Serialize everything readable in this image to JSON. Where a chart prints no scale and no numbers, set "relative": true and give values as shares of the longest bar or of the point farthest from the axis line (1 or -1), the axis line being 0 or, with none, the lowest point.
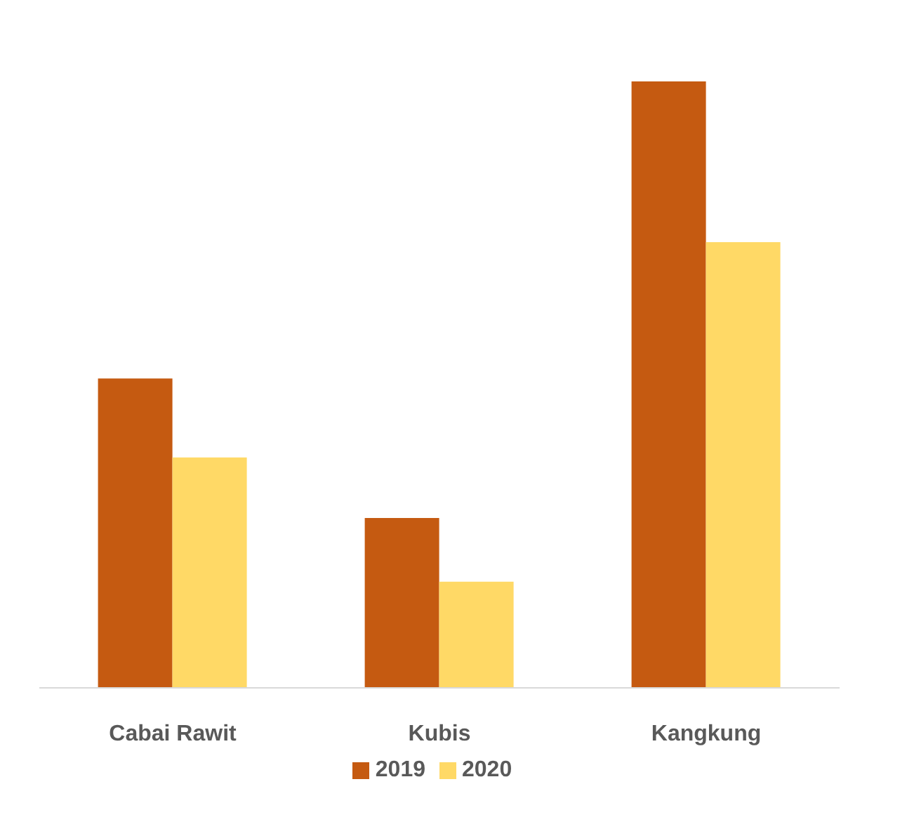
{
  "chart_data": {
    "type": "bar",
    "relative": true,
    "categories": [
      "Cabai Rawit",
      "Kubis",
      "Kangkung"
    ],
    "series": [
      {
        "name": "2019",
        "color": "#c55a11",
        "values": [
          0.51,
          0.28,
          1
        ]
      },
      {
        "name": "2020",
        "color": "#ffd966",
        "values": [
          0.38,
          0.175,
          0.735
        ]
      }
    ],
    "legend": "bottom",
    "grid": false
  }
}
